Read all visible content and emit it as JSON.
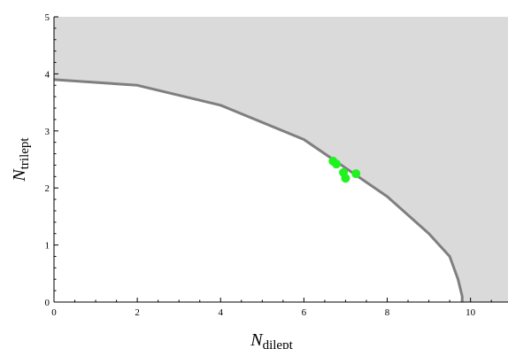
{
  "chart_data": {
    "type": "scatter",
    "xlabel": {
      "main": "N",
      "sub": "dilept"
    },
    "ylabel": {
      "main": "N",
      "sub": "trilept"
    },
    "xlim": [
      0,
      10.9
    ],
    "ylim": [
      0,
      5
    ],
    "x_ticks": [
      "0",
      "2",
      "4",
      "6",
      "8",
      "10"
    ],
    "y_ticks": [
      "0",
      "1",
      "2",
      "3",
      "4",
      "5"
    ],
    "grid": false,
    "colors": {
      "excluded_region": "#dadada",
      "boundary": "#7f7f7f",
      "points": "#1ff31f"
    },
    "boundary_curve": {
      "x": [
        0,
        2,
        4,
        6,
        8,
        9,
        9.5,
        9.7,
        9.8,
        9.8
      ],
      "y": [
        3.9,
        3.8,
        3.45,
        2.85,
        1.85,
        1.2,
        0.8,
        0.4,
        0.1,
        0
      ]
    },
    "points": {
      "x": [
        6.7,
        6.78,
        6.95,
        7.0,
        7.25
      ],
      "y": [
        2.47,
        2.42,
        2.27,
        2.17,
        2.25
      ]
    }
  }
}
